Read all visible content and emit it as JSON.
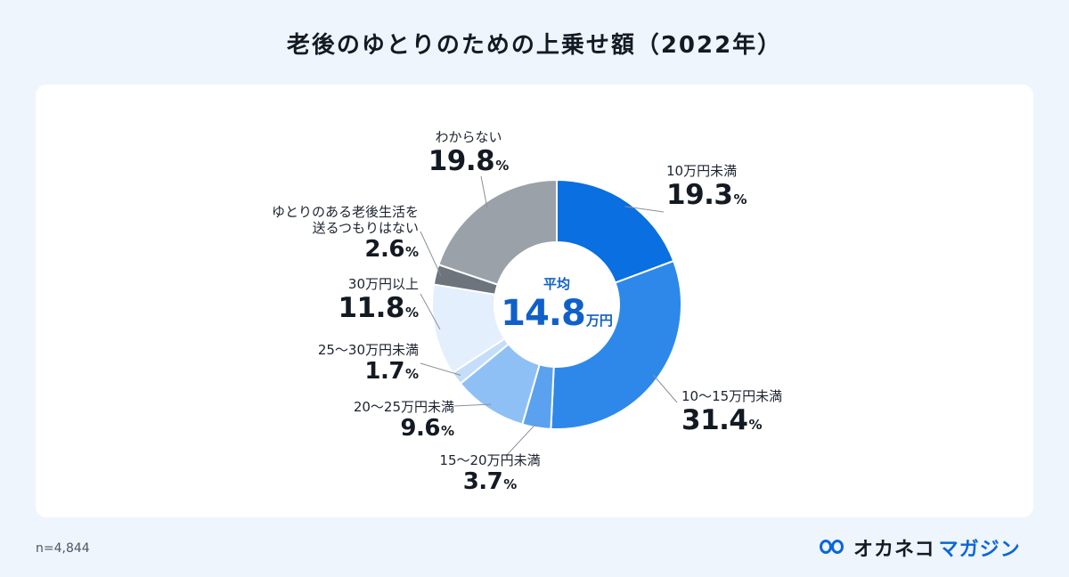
{
  "title": "老後のゆとりのための上乗せ額（2022年）",
  "note": "n=4,844",
  "brand": {
    "part1": "オカネコ",
    "part2": "マガジン",
    "icon": "owl-eyes-icon"
  },
  "center": {
    "label": "平均",
    "value": "14.8",
    "unit": "万円"
  },
  "chart_data": {
    "type": "pie",
    "subtype": "donut",
    "title": "老後のゆとりのための上乗せ額（2022年）",
    "unit": "%",
    "slices": [
      {
        "name": "10万円未満",
        "value": 19.3,
        "color": "#0a6fe0"
      },
      {
        "name": "10〜15万円未満",
        "value": 31.4,
        "color": "#2e88ea"
      },
      {
        "name": "15〜20万円未満",
        "value": 3.7,
        "color": "#5aa2ef"
      },
      {
        "name": "20〜25万円未満",
        "value": 9.6,
        "color": "#8fc0f5"
      },
      {
        "name": "25〜30万円未満",
        "value": 1.7,
        "color": "#c4ddf9"
      },
      {
        "name": "30万円以上",
        "value": 11.8,
        "color": "#e3effc"
      },
      {
        "name": "ゆとりのある老後生活を送るつもりはない",
        "value": 2.6,
        "color": "#6d747c"
      },
      {
        "name": "わからない",
        "value": 19.8,
        "color": "#9aa1a8"
      }
    ]
  },
  "labels": [
    {
      "name_lines": [
        "10万円未満"
      ],
      "value": "19.3",
      "pct": "%"
    },
    {
      "name_lines": [
        "10〜15万円未満"
      ],
      "value": "31.4",
      "pct": "%"
    },
    {
      "name_lines": [
        "15〜20万円未満"
      ],
      "value": "3.7",
      "pct": "%"
    },
    {
      "name_lines": [
        "20〜25万円未満"
      ],
      "value": "9.6",
      "pct": "%"
    },
    {
      "name_lines": [
        "25〜30万円未満"
      ],
      "value": "1.7",
      "pct": "%"
    },
    {
      "name_lines": [
        "30万円以上"
      ],
      "value": "11.8",
      "pct": "%"
    },
    {
      "name_lines": [
        "ゆとりのある老後生活を",
        "送るつもりはない"
      ],
      "value": "2.6",
      "pct": "%"
    },
    {
      "name_lines": [
        "わからない"
      ],
      "value": "19.8",
      "pct": "%"
    }
  ]
}
